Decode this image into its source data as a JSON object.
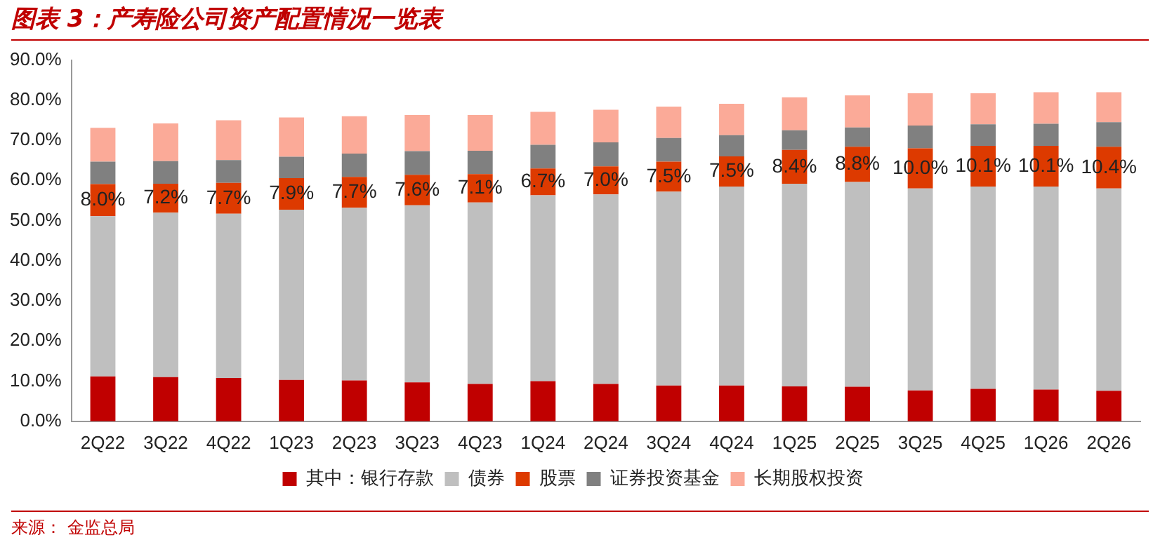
{
  "chart_data": {
    "type": "bar",
    "stacked": true,
    "title": "图表 3：产寿险公司资产配置情况一览表",
    "annotations": [
      "来源： 金监总局"
    ],
    "categories": [
      "2Q22",
      "3Q22",
      "4Q22",
      "1Q23",
      "2Q23",
      "3Q23",
      "4Q23",
      "1Q24",
      "2Q24",
      "3Q24",
      "4Q24",
      "1Q25",
      "2Q25",
      "3Q25",
      "4Q25",
      "1Q26",
      "2Q26"
    ],
    "series": [
      {
        "name": "其中：银行存款",
        "color": "#c00000",
        "values": [
          11.2,
          11.0,
          10.8,
          10.3,
          10.2,
          9.7,
          9.3,
          10.0,
          9.3,
          8.9,
          8.9,
          8.7,
          8.6,
          7.7,
          8.1,
          7.9,
          7.6
        ]
      },
      {
        "name": "债券",
        "color": "#bfbfbf",
        "values": [
          39.9,
          41.0,
          40.9,
          42.4,
          43.0,
          44.1,
          45.2,
          46.3,
          47.2,
          48.3,
          49.6,
          50.5,
          51.0,
          50.3,
          50.4,
          50.6,
          50.4
        ]
      },
      {
        "name": "股票",
        "color": "#dd3a00",
        "values": [
          8.0,
          7.2,
          7.7,
          7.9,
          7.7,
          7.6,
          7.1,
          6.7,
          7.0,
          7.5,
          7.5,
          8.4,
          8.8,
          10.0,
          10.1,
          10.1,
          10.4
        ],
        "value_labels": [
          "8.0%",
          "7.2%",
          "7.7%",
          "7.9%",
          "7.7%",
          "7.6%",
          "7.1%",
          "6.7%",
          "7.0%",
          "7.5%",
          "7.5%",
          "8.4%",
          "8.8%",
          "10.0%",
          "10.1%",
          "10.1%",
          "10.4%"
        ]
      },
      {
        "name": "证券投资基金",
        "color": "#808080",
        "values": [
          5.6,
          5.6,
          5.7,
          5.3,
          5.8,
          5.9,
          5.8,
          5.9,
          6.0,
          5.9,
          5.3,
          4.9,
          4.8,
          5.7,
          5.4,
          5.5,
          6.1
        ]
      },
      {
        "name": "长期股权投资",
        "color": "#fbaa98",
        "values": [
          8.4,
          9.4,
          9.9,
          9.8,
          9.3,
          9.0,
          8.9,
          8.2,
          8.1,
          7.8,
          7.8,
          8.2,
          8.0,
          8.0,
          7.7,
          7.9,
          7.5
        ]
      }
    ],
    "ylim": [
      0,
      90
    ],
    "yticks": [
      {
        "value": 0,
        "label": "0.0%"
      },
      {
        "value": 10,
        "label": "10.0%"
      },
      {
        "value": 20,
        "label": "20.0%"
      },
      {
        "value": 30,
        "label": "30.0%"
      },
      {
        "value": 40,
        "label": "40.0%"
      },
      {
        "value": 50,
        "label": "50.0%"
      },
      {
        "value": 60,
        "label": "60.0%"
      },
      {
        "value": 70,
        "label": "70.0%"
      },
      {
        "value": 80,
        "label": "80.0%"
      },
      {
        "value": 90,
        "label": "90.0%"
      }
    ],
    "grid": false,
    "legend": "bottom"
  }
}
